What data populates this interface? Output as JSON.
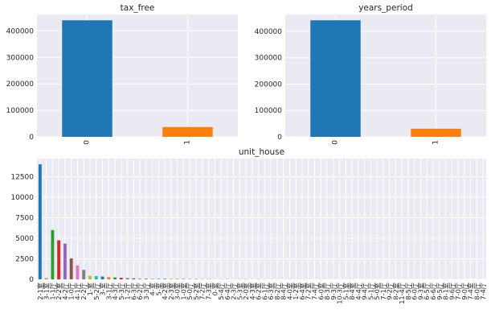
{
  "style": {
    "axes_bg": "#eaeaf2",
    "grid_color": "#ffffff",
    "palette": [
      "#1f77b4",
      "#ff7f0e",
      "#2ca02c",
      "#d62728",
      "#9467bd",
      "#8c564b",
      "#e377c2",
      "#7f7f7f",
      "#bcbd22",
      "#17becf"
    ]
  },
  "chart_data": [
    {
      "type": "bar",
      "title": "tax_free",
      "categories": [
        "0",
        "1"
      ],
      "values": [
        440000,
        37000
      ],
      "ylim": [
        0,
        462000
      ],
      "yticks": [
        0,
        100000,
        200000,
        300000,
        400000
      ],
      "grid": true,
      "bar_colors": [
        "#1f77b4",
        "#ff7f0e"
      ]
    },
    {
      "type": "bar",
      "title": "years_period",
      "categories": [
        "0",
        "1"
      ],
      "values": [
        442000,
        31000
      ],
      "ylim": [
        0,
        464000
      ],
      "yticks": [
        0,
        100000,
        200000,
        300000,
        400000
      ],
      "grid": true,
      "bar_colors": [
        "#1f77b4",
        "#ff7f0e"
      ]
    },
    {
      "type": "bar",
      "title": "unit_house",
      "categories": [
        "2-1室",
        "3-1室",
        "1-1厅",
        "2-2室",
        "4-2厅",
        "1-0厅",
        "4-1厅",
        "2-2厅",
        "1-室",
        "5-2厅",
        "3-室",
        "3-1厅",
        "4-3厅",
        "5-3厅",
        "1-2厅",
        "6-3厅",
        "6-2厅",
        "3-3厅",
        "4-室",
        "5-室",
        "4-2室",
        "2-3室",
        "3-0室",
        "1-0室",
        "5-0厅",
        "5-2室",
        "7-2厅",
        "7-3室",
        "0-室",
        "5-4厅",
        "6-4厅",
        "2-3厅",
        "5-3室",
        "2-0室",
        "4-3室",
        "6-2室",
        "6-1厅",
        "6-3室",
        "8-2厅",
        "8-4厅",
        "4-0室",
        "1-2室",
        "6-4室",
        "7-2室",
        "7-4厅",
        "6-0室",
        "8-3厅",
        "9-3厅",
        "10-3厅",
        "5-1室",
        "8-4室",
        "4-4厅",
        "9-4厅",
        "5-1厅",
        "5-0室",
        "7-1厅",
        "9-2厅",
        "8-2室",
        "11-4厅",
        "8-5厅",
        "6-0厅",
        "9-3室",
        "6-5厅",
        "6-6厅",
        "9-5厅",
        "8-1室",
        "9-6厅",
        "7-0厅",
        "9-0厅",
        "7-4室",
        "8-0厅",
        "7-4厅"
      ],
      "values": [
        14000,
        140,
        6000,
        4750,
        4350,
        2550,
        1700,
        1150,
        430,
        390,
        340,
        270,
        230,
        190,
        150,
        120,
        100,
        85,
        75,
        70,
        60,
        55,
        50,
        45,
        40,
        36,
        33,
        30,
        28,
        26,
        24,
        22,
        20,
        19,
        18,
        17,
        16,
        15,
        14,
        13,
        12,
        11,
        10,
        10,
        9,
        9,
        8,
        8,
        7,
        7,
        6,
        6,
        6,
        5,
        5,
        5,
        4,
        4,
        4,
        4,
        3,
        3,
        3,
        3,
        3,
        2,
        2,
        2,
        2,
        2,
        1,
        1
      ],
      "ylim": [
        0,
        14700
      ],
      "yticks": [
        0,
        2500,
        5000,
        7500,
        10000,
        12500
      ],
      "grid": true
    }
  ]
}
